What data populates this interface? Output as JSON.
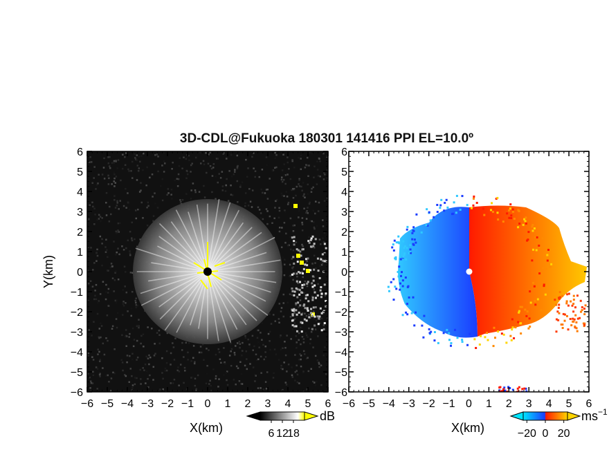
{
  "chart_data": [
    {
      "type": "heatmap",
      "panel": "reflectivity-echo-intensity",
      "title": "3D-CDL@Fukuoka 180301 141416 PPI EL=10.0º",
      "xlabel": "X(km)",
      "ylabel": "Y(km)",
      "xlim": [
        -6,
        6
      ],
      "ylim": [
        -6,
        6
      ],
      "x_ticks": [
        "−6",
        "−5",
        "−4",
        "−3",
        "−2",
        "−1",
        "0",
        "1",
        "2",
        "3",
        "4",
        "5",
        "6"
      ],
      "y_ticks": [
        "6",
        "5",
        "4",
        "3",
        "2",
        "1",
        "0",
        "−1",
        "−2",
        "−3",
        "−4",
        "−5",
        "−6"
      ],
      "colorbar": {
        "unit": "dB",
        "ticks": [
          "6",
          "12",
          "18"
        ],
        "range": [
          0,
          24
        ],
        "colors": [
          "#000000",
          "#ffffff",
          "#ffff00"
        ]
      },
      "background_color": "#111111",
      "echo_radius_km": 3.6,
      "clutter_color": "#ffff00"
    },
    {
      "type": "heatmap",
      "panel": "doppler-velocity",
      "xlabel": "X(km)",
      "xlim": [
        -6,
        6
      ],
      "ylim": [
        -6,
        6
      ],
      "x_ticks": [
        "−6",
        "−5",
        "−4",
        "−3",
        "−2",
        "−1",
        "0",
        "1",
        "2",
        "3",
        "4",
        "5",
        "6"
      ],
      "y_ticks": [
        "6",
        "5",
        "4",
        "3",
        "2",
        "1",
        "0",
        "−1",
        "−2",
        "−3",
        "−4",
        "−5",
        "−6"
      ],
      "colorbar": {
        "unit": "ms",
        "unit_exponent": "−1",
        "ticks": [
          "−20",
          "0",
          "20"
        ],
        "range": [
          -24,
          24
        ],
        "colors": [
          "#00e5ff",
          "#1a3cff",
          "#ff1a00",
          "#ffd500"
        ]
      },
      "background_color": "#ffffff"
    }
  ]
}
